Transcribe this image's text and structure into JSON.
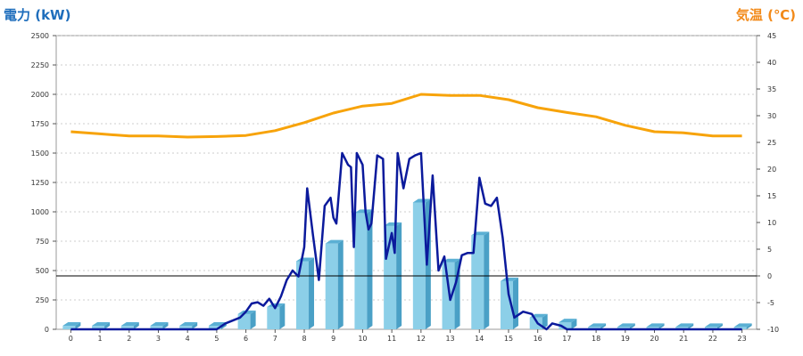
{
  "axes": {
    "left_title": "電力 (kW)",
    "right_title": "気温 (℃)"
  },
  "chart_data": {
    "type": "bar+line",
    "x_categories": [
      "0",
      "1",
      "2",
      "3",
      "4",
      "5",
      "6",
      "7",
      "8",
      "9",
      "10",
      "11",
      "12",
      "13",
      "14",
      "15",
      "16",
      "17",
      "18",
      "19",
      "20",
      "21",
      "22",
      "23"
    ],
    "bars_power_kw": [
      30,
      30,
      30,
      30,
      30,
      30,
      130,
      190,
      580,
      730,
      990,
      880,
      1080,
      570,
      800,
      410,
      100,
      60,
      20,
      20,
      20,
      20,
      20,
      20
    ],
    "power_line_kw": [
      [
        0,
        0
      ],
      [
        1,
        0
      ],
      [
        2,
        0
      ],
      [
        3,
        0
      ],
      [
        4,
        0
      ],
      [
        5,
        0
      ],
      [
        5.3,
        50
      ],
      [
        5.8,
        100
      ],
      [
        6.0,
        150
      ],
      [
        6.2,
        220
      ],
      [
        6.4,
        230
      ],
      [
        6.6,
        200
      ],
      [
        6.8,
        260
      ],
      [
        7.0,
        180
      ],
      [
        7.2,
        280
      ],
      [
        7.4,
        420
      ],
      [
        7.6,
        500
      ],
      [
        7.8,
        450
      ],
      [
        8.0,
        700
      ],
      [
        8.1,
        1200
      ],
      [
        8.3,
        800
      ],
      [
        8.5,
        420
      ],
      [
        8.7,
        1050
      ],
      [
        8.9,
        1120
      ],
      [
        9.0,
        950
      ],
      [
        9.1,
        900
      ],
      [
        9.3,
        1500
      ],
      [
        9.5,
        1400
      ],
      [
        9.6,
        1380
      ],
      [
        9.7,
        700
      ],
      [
        9.8,
        1500
      ],
      [
        10.0,
        1400
      ],
      [
        10.1,
        1000
      ],
      [
        10.2,
        850
      ],
      [
        10.3,
        900
      ],
      [
        10.5,
        1480
      ],
      [
        10.7,
        1450
      ],
      [
        10.8,
        600
      ],
      [
        11.0,
        820
      ],
      [
        11.1,
        650
      ],
      [
        11.2,
        1500
      ],
      [
        11.4,
        1200
      ],
      [
        11.6,
        1450
      ],
      [
        11.8,
        1480
      ],
      [
        12.0,
        1500
      ],
      [
        12.2,
        550
      ],
      [
        12.4,
        1310
      ],
      [
        12.6,
        500
      ],
      [
        12.8,
        620
      ],
      [
        13.0,
        250
      ],
      [
        13.2,
        400
      ],
      [
        13.4,
        630
      ],
      [
        13.6,
        650
      ],
      [
        13.8,
        650
      ],
      [
        14.0,
        1290
      ],
      [
        14.2,
        1070
      ],
      [
        14.4,
        1050
      ],
      [
        14.6,
        1120
      ],
      [
        14.8,
        780
      ],
      [
        15.0,
        300
      ],
      [
        15.2,
        100
      ],
      [
        15.5,
        150
      ],
      [
        15.8,
        130
      ],
      [
        16.0,
        50
      ],
      [
        16.3,
        0
      ],
      [
        16.5,
        50
      ],
      [
        16.8,
        30
      ],
      [
        17.0,
        0
      ],
      [
        18,
        0
      ],
      [
        19,
        0
      ],
      [
        20,
        0
      ],
      [
        21,
        0
      ],
      [
        22,
        0
      ],
      [
        23,
        0
      ]
    ],
    "temperature_c": [
      [
        0,
        27.0
      ],
      [
        1,
        26.6
      ],
      [
        2,
        26.2
      ],
      [
        3,
        26.2
      ],
      [
        4,
        26.0
      ],
      [
        5,
        26.1
      ],
      [
        6,
        26.3
      ],
      [
        7,
        27.2
      ],
      [
        8,
        28.7
      ],
      [
        9,
        30.5
      ],
      [
        10,
        31.8
      ],
      [
        11,
        32.3
      ],
      [
        12,
        34.0
      ],
      [
        13,
        33.8
      ],
      [
        14,
        33.8
      ],
      [
        15,
        33.0
      ],
      [
        16,
        31.5
      ],
      [
        17,
        30.6
      ],
      [
        18,
        29.8
      ],
      [
        19,
        28.2
      ],
      [
        20,
        27.0
      ],
      [
        21,
        26.8
      ],
      [
        22,
        26.2
      ],
      [
        23,
        26.2
      ]
    ],
    "left_ylim": [
      0,
      2500
    ],
    "left_ticks": [
      0,
      250,
      500,
      750,
      1000,
      1250,
      1500,
      1750,
      2000,
      2250,
      2500
    ],
    "right_ylim": [
      -10,
      45
    ],
    "right_ticks": [
      -10,
      -5,
      0,
      5,
      10,
      15,
      20,
      25,
      30,
      35,
      40,
      45
    ],
    "grid": true,
    "colors": {
      "left_title": "#1f6ebc",
      "right_title": "#f28a1a",
      "bar_face": "#8ccfe8",
      "bar_side": "#4aa0c6",
      "bar_top": "#5bb0d4",
      "power_line": "#0b1a9c",
      "temperature_line": "#f7a30a",
      "grid": "#bcbcbc",
      "zero_line": "#000000"
    }
  }
}
